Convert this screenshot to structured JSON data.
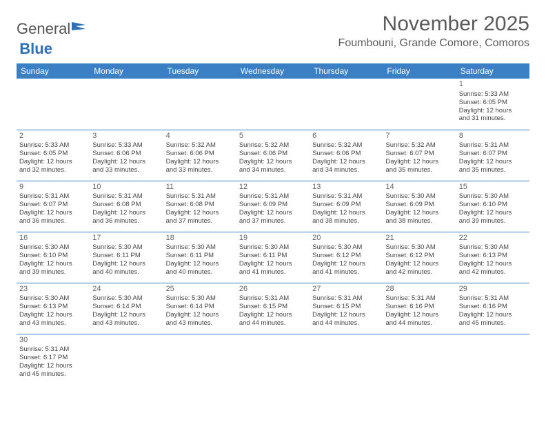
{
  "logo": {
    "part1": "General",
    "part2": "Blue"
  },
  "title": "November 2025",
  "location": "Foumbouni, Grande Comore, Comoros",
  "colors": {
    "header_bg": "#3b7fc4",
    "header_text": "#ffffff",
    "border": "#3b7fc4",
    "logo_blue": "#2e6fb5"
  },
  "day_headers": [
    "Sunday",
    "Monday",
    "Tuesday",
    "Wednesday",
    "Thursday",
    "Friday",
    "Saturday"
  ],
  "weeks": [
    [
      null,
      null,
      null,
      null,
      null,
      null,
      {
        "n": "1",
        "sr": "Sunrise: 5:33 AM",
        "ss": "Sunset: 6:05 PM",
        "d1": "Daylight: 12 hours",
        "d2": "and 31 minutes."
      }
    ],
    [
      {
        "n": "2",
        "sr": "Sunrise: 5:33 AM",
        "ss": "Sunset: 6:05 PM",
        "d1": "Daylight: 12 hours",
        "d2": "and 32 minutes."
      },
      {
        "n": "3",
        "sr": "Sunrise: 5:33 AM",
        "ss": "Sunset: 6:06 PM",
        "d1": "Daylight: 12 hours",
        "d2": "and 33 minutes."
      },
      {
        "n": "4",
        "sr": "Sunrise: 5:32 AM",
        "ss": "Sunset: 6:06 PM",
        "d1": "Daylight: 12 hours",
        "d2": "and 33 minutes."
      },
      {
        "n": "5",
        "sr": "Sunrise: 5:32 AM",
        "ss": "Sunset: 6:06 PM",
        "d1": "Daylight: 12 hours",
        "d2": "and 34 minutes."
      },
      {
        "n": "6",
        "sr": "Sunrise: 5:32 AM",
        "ss": "Sunset: 6:06 PM",
        "d1": "Daylight: 12 hours",
        "d2": "and 34 minutes."
      },
      {
        "n": "7",
        "sr": "Sunrise: 5:32 AM",
        "ss": "Sunset: 6:07 PM",
        "d1": "Daylight: 12 hours",
        "d2": "and 35 minutes."
      },
      {
        "n": "8",
        "sr": "Sunrise: 5:31 AM",
        "ss": "Sunset: 6:07 PM",
        "d1": "Daylight: 12 hours",
        "d2": "and 35 minutes."
      }
    ],
    [
      {
        "n": "9",
        "sr": "Sunrise: 5:31 AM",
        "ss": "Sunset: 6:07 PM",
        "d1": "Daylight: 12 hours",
        "d2": "and 36 minutes."
      },
      {
        "n": "10",
        "sr": "Sunrise: 5:31 AM",
        "ss": "Sunset: 6:08 PM",
        "d1": "Daylight: 12 hours",
        "d2": "and 36 minutes."
      },
      {
        "n": "11",
        "sr": "Sunrise: 5:31 AM",
        "ss": "Sunset: 6:08 PM",
        "d1": "Daylight: 12 hours",
        "d2": "and 37 minutes."
      },
      {
        "n": "12",
        "sr": "Sunrise: 5:31 AM",
        "ss": "Sunset: 6:09 PM",
        "d1": "Daylight: 12 hours",
        "d2": "and 37 minutes."
      },
      {
        "n": "13",
        "sr": "Sunrise: 5:31 AM",
        "ss": "Sunset: 6:09 PM",
        "d1": "Daylight: 12 hours",
        "d2": "and 38 minutes."
      },
      {
        "n": "14",
        "sr": "Sunrise: 5:30 AM",
        "ss": "Sunset: 6:09 PM",
        "d1": "Daylight: 12 hours",
        "d2": "and 38 minutes."
      },
      {
        "n": "15",
        "sr": "Sunrise: 5:30 AM",
        "ss": "Sunset: 6:10 PM",
        "d1": "Daylight: 12 hours",
        "d2": "and 39 minutes."
      }
    ],
    [
      {
        "n": "16",
        "sr": "Sunrise: 5:30 AM",
        "ss": "Sunset: 6:10 PM",
        "d1": "Daylight: 12 hours",
        "d2": "and 39 minutes."
      },
      {
        "n": "17",
        "sr": "Sunrise: 5:30 AM",
        "ss": "Sunset: 6:11 PM",
        "d1": "Daylight: 12 hours",
        "d2": "and 40 minutes."
      },
      {
        "n": "18",
        "sr": "Sunrise: 5:30 AM",
        "ss": "Sunset: 6:11 PM",
        "d1": "Daylight: 12 hours",
        "d2": "and 40 minutes."
      },
      {
        "n": "19",
        "sr": "Sunrise: 5:30 AM",
        "ss": "Sunset: 6:11 PM",
        "d1": "Daylight: 12 hours",
        "d2": "and 41 minutes."
      },
      {
        "n": "20",
        "sr": "Sunrise: 5:30 AM",
        "ss": "Sunset: 6:12 PM",
        "d1": "Daylight: 12 hours",
        "d2": "and 41 minutes."
      },
      {
        "n": "21",
        "sr": "Sunrise: 5:30 AM",
        "ss": "Sunset: 6:12 PM",
        "d1": "Daylight: 12 hours",
        "d2": "and 42 minutes."
      },
      {
        "n": "22",
        "sr": "Sunrise: 5:30 AM",
        "ss": "Sunset: 6:13 PM",
        "d1": "Daylight: 12 hours",
        "d2": "and 42 minutes."
      }
    ],
    [
      {
        "n": "23",
        "sr": "Sunrise: 5:30 AM",
        "ss": "Sunset: 6:13 PM",
        "d1": "Daylight: 12 hours",
        "d2": "and 43 minutes."
      },
      {
        "n": "24",
        "sr": "Sunrise: 5:30 AM",
        "ss": "Sunset: 6:14 PM",
        "d1": "Daylight: 12 hours",
        "d2": "and 43 minutes."
      },
      {
        "n": "25",
        "sr": "Sunrise: 5:30 AM",
        "ss": "Sunset: 6:14 PM",
        "d1": "Daylight: 12 hours",
        "d2": "and 43 minutes."
      },
      {
        "n": "26",
        "sr": "Sunrise: 5:31 AM",
        "ss": "Sunset: 6:15 PM",
        "d1": "Daylight: 12 hours",
        "d2": "and 44 minutes."
      },
      {
        "n": "27",
        "sr": "Sunrise: 5:31 AM",
        "ss": "Sunset: 6:15 PM",
        "d1": "Daylight: 12 hours",
        "d2": "and 44 minutes."
      },
      {
        "n": "28",
        "sr": "Sunrise: 5:31 AM",
        "ss": "Sunset: 6:16 PM",
        "d1": "Daylight: 12 hours",
        "d2": "and 44 minutes."
      },
      {
        "n": "29",
        "sr": "Sunrise: 5:31 AM",
        "ss": "Sunset: 6:16 PM",
        "d1": "Daylight: 12 hours",
        "d2": "and 45 minutes."
      }
    ],
    [
      {
        "n": "30",
        "sr": "Sunrise: 5:31 AM",
        "ss": "Sunset: 6:17 PM",
        "d1": "Daylight: 12 hours",
        "d2": "and 45 minutes."
      },
      null,
      null,
      null,
      null,
      null,
      null
    ]
  ]
}
